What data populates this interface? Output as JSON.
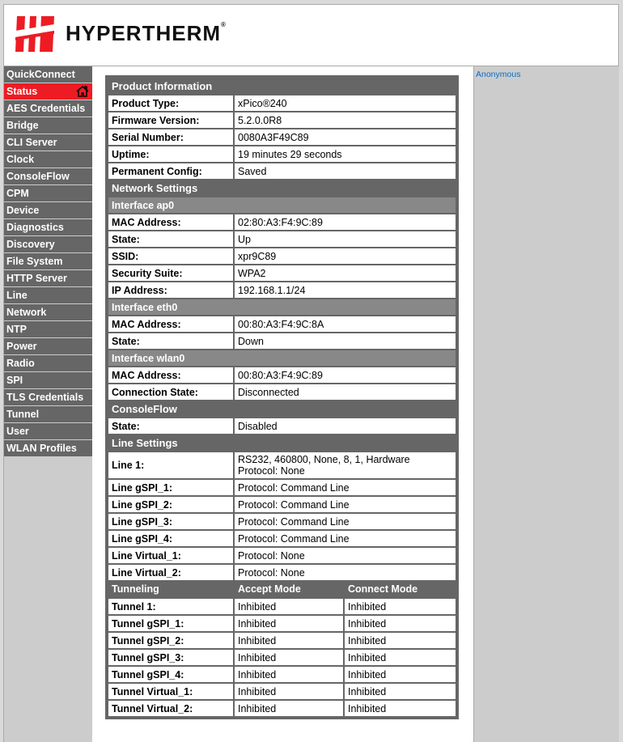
{
  "header": {
    "brand": "HYPERTHERM",
    "brand_color": "#ed1c24"
  },
  "sidebar": {
    "items": [
      {
        "label": "QuickConnect"
      },
      {
        "label": "Status",
        "active": true,
        "icon": "home-icon"
      },
      {
        "label": "AES Credentials"
      },
      {
        "label": "Bridge"
      },
      {
        "label": "CLI Server"
      },
      {
        "label": "Clock"
      },
      {
        "label": "ConsoleFlow"
      },
      {
        "label": "CPM"
      },
      {
        "label": "Device"
      },
      {
        "label": "Diagnostics"
      },
      {
        "label": "Discovery"
      },
      {
        "label": "File System"
      },
      {
        "label": "HTTP Server"
      },
      {
        "label": "Line"
      },
      {
        "label": "Network"
      },
      {
        "label": "NTP"
      },
      {
        "label": "Power"
      },
      {
        "label": "Radio"
      },
      {
        "label": "SPI"
      },
      {
        "label": "TLS Credentials"
      },
      {
        "label": "Tunnel"
      },
      {
        "label": "User"
      },
      {
        "label": "WLAN Profiles"
      }
    ]
  },
  "user": {
    "label": "Anonymous"
  },
  "status": {
    "rows": [
      {
        "type": "sec",
        "label": "Product Information"
      },
      {
        "k": "Product Type:",
        "v": "xPico®240"
      },
      {
        "k": "Firmware Version:",
        "v": "5.2.0.0R8"
      },
      {
        "k": "Serial Number:",
        "v": "0080A3F49C89"
      },
      {
        "k": "Uptime:",
        "v": "19 minutes 29 seconds"
      },
      {
        "k": "Permanent Config:",
        "v": "Saved"
      },
      {
        "type": "sec",
        "label": "Network Settings"
      },
      {
        "type": "sub",
        "label": "Interface ap0"
      },
      {
        "k": "MAC Address:",
        "v": "02:80:A3:F4:9C:89"
      },
      {
        "k": "State:",
        "v": "Up"
      },
      {
        "k": "SSID:",
        "v": "xpr9C89"
      },
      {
        "k": "Security Suite:",
        "v": "WPA2"
      },
      {
        "k": "IP Address:",
        "v": "192.168.1.1/24"
      },
      {
        "type": "sub",
        "label": "Interface eth0"
      },
      {
        "k": "MAC Address:",
        "v": "00:80:A3:F4:9C:8A"
      },
      {
        "k": "State:",
        "v": "Down"
      },
      {
        "type": "sub",
        "label": "Interface wlan0"
      },
      {
        "k": "MAC Address:",
        "v": "00:80:A3:F4:9C:89"
      },
      {
        "k": "Connection State:",
        "v": "Disconnected"
      },
      {
        "type": "sec",
        "label": "ConsoleFlow"
      },
      {
        "k": "State:",
        "v": "Disabled"
      },
      {
        "type": "sec",
        "label": "Line Settings"
      },
      {
        "k": "Line 1:",
        "v": "RS232, 460800, None, 8, 1, Hardware",
        "v2": "Protocol: None"
      },
      {
        "k": "Line gSPI_1:",
        "v": "Protocol: Command Line"
      },
      {
        "k": "Line gSPI_2:",
        "v": "Protocol: Command Line"
      },
      {
        "k": "Line gSPI_3:",
        "v": "Protocol: Command Line"
      },
      {
        "k": "Line gSPI_4:",
        "v": "Protocol: Command Line"
      },
      {
        "k": "Line Virtual_1:",
        "v": "Protocol: None"
      },
      {
        "k": "Line Virtual_2:",
        "v": "Protocol: None"
      },
      {
        "type": "th",
        "cols": [
          "Tunneling",
          "Accept Mode",
          "Connect Mode"
        ]
      },
      {
        "k": "Tunnel 1:",
        "v": "Inhibited",
        "c": "Inhibited"
      },
      {
        "k": "Tunnel gSPI_1:",
        "v": "Inhibited",
        "c": "Inhibited"
      },
      {
        "k": "Tunnel gSPI_2:",
        "v": "Inhibited",
        "c": "Inhibited"
      },
      {
        "k": "Tunnel gSPI_3:",
        "v": "Inhibited",
        "c": "Inhibited"
      },
      {
        "k": "Tunnel gSPI_4:",
        "v": "Inhibited",
        "c": "Inhibited"
      },
      {
        "k": "Tunnel Virtual_1:",
        "v": "Inhibited",
        "c": "Inhibited"
      },
      {
        "k": "Tunnel Virtual_2:",
        "v": "Inhibited",
        "c": "Inhibited"
      }
    ]
  }
}
